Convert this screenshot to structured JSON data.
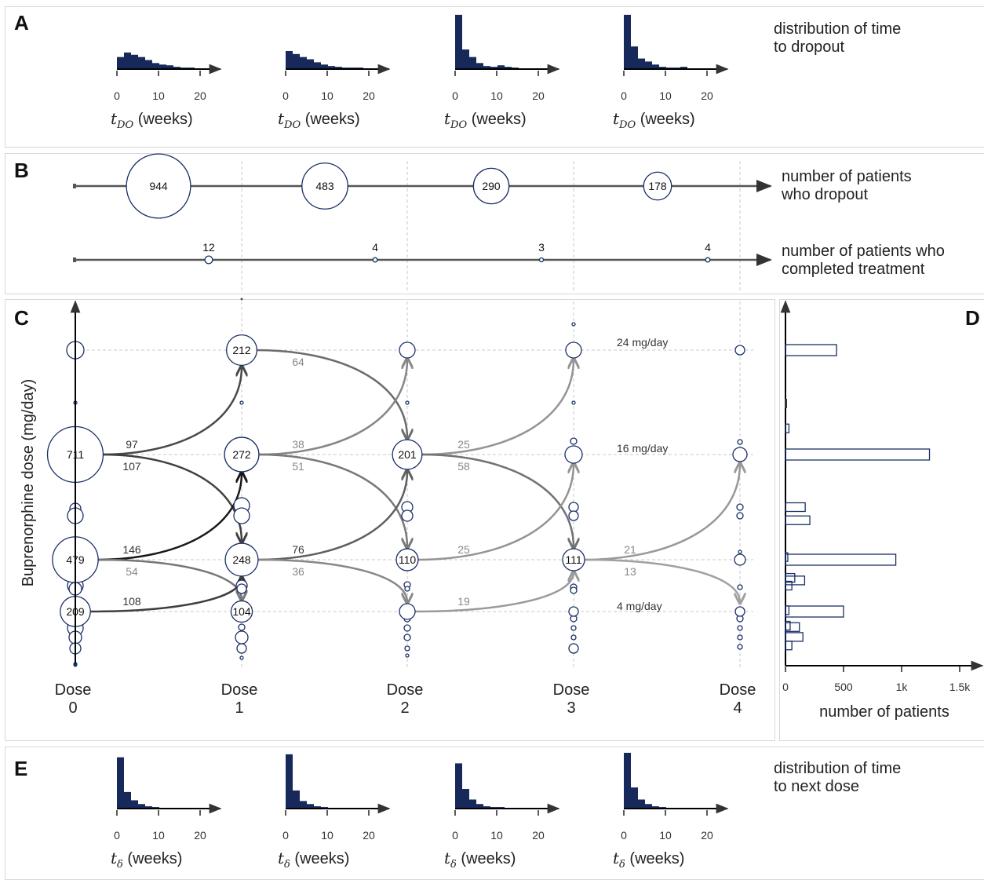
{
  "panels": {
    "a": "A",
    "b": "B",
    "c": "C",
    "d": "D",
    "e": "E"
  },
  "notes": {
    "a": "distribution of time\nto dropout",
    "b1": "number of patients\nwho dropout",
    "b2": "number of patients who\ncompleted treatment",
    "e": "distribution of time\nto next dose"
  },
  "colors": {
    "navy": "#16295a",
    "circle_stroke": "#1a2f66",
    "axis": "#333333",
    "grid": "#c8c8c8"
  },
  "chart_data": [
    {
      "id": "A",
      "type": "bar",
      "xlabel": "t_DO (weeks)",
      "xticks": [
        0,
        10,
        20
      ],
      "bin_width_weeks": 2,
      "series": [
        {
          "values": [
            16,
            22,
            19,
            16,
            12,
            8,
            6,
            5,
            3,
            2,
            2,
            1,
            1
          ]
        },
        {
          "values": [
            24,
            20,
            16,
            13,
            9,
            6,
            4,
            3,
            2,
            2,
            2,
            1,
            1
          ]
        },
        {
          "values": [
            72,
            26,
            16,
            8,
            4,
            3,
            5,
            3,
            2,
            1,
            1,
            1,
            1
          ]
        },
        {
          "values": [
            72,
            30,
            14,
            10,
            6,
            3,
            2,
            2,
            3,
            1,
            1,
            1,
            1
          ]
        }
      ]
    },
    {
      "id": "B",
      "type": "scatter",
      "rows": [
        {
          "values": [
            944,
            483,
            290,
            178
          ]
        },
        {
          "values": [
            12,
            4,
            3,
            4
          ]
        }
      ]
    },
    {
      "id": "C",
      "type": "scatter",
      "ylabel": "Buprenorphine dose (mg/day)",
      "x_categories": [
        [
          "Dose",
          "0"
        ],
        [
          "Dose",
          "1"
        ],
        [
          "Dose",
          "2"
        ],
        [
          "Dose",
          "3"
        ],
        [
          "Dose",
          "4"
        ]
      ],
      "dose_levels_mg": [
        4,
        8,
        16,
        24
      ],
      "level_labels": [
        "24 mg/day",
        "16 mg/day",
        "4 mg/day"
      ],
      "nodes": [
        {
          "dose": 0,
          "mg": 16,
          "n": 711
        },
        {
          "dose": 0,
          "mg": 8,
          "n": 479
        },
        {
          "dose": 0,
          "mg": 4,
          "n": 209
        },
        {
          "dose": 1,
          "mg": 24,
          "n": 212
        },
        {
          "dose": 1,
          "mg": 16,
          "n": 272
        },
        {
          "dose": 1,
          "mg": 8,
          "n": 248
        },
        {
          "dose": 1,
          "mg": 4,
          "n": 104
        },
        {
          "dose": 2,
          "mg": 16,
          "n": 201
        },
        {
          "dose": 2,
          "mg": 8,
          "n": 110
        },
        {
          "dose": 3,
          "mg": 8,
          "n": 111
        }
      ],
      "flows": [
        {
          "from": 0,
          "from_mg": 16,
          "to_mg": 24,
          "n": 97
        },
        {
          "from": 0,
          "from_mg": 16,
          "to_mg": 8,
          "n": 107
        },
        {
          "from": 0,
          "from_mg": 8,
          "to_mg": 16,
          "n": 146
        },
        {
          "from": 0,
          "from_mg": 8,
          "to_mg": 4,
          "n": 54
        },
        {
          "from": 0,
          "from_mg": 4,
          "to_mg": 8,
          "n": 108
        },
        {
          "from": 1,
          "from_mg": 24,
          "to_mg": 16,
          "n": 64
        },
        {
          "from": 1,
          "from_mg": 16,
          "to_mg": 24,
          "n": 38
        },
        {
          "from": 1,
          "from_mg": 16,
          "to_mg": 8,
          "n": 51
        },
        {
          "from": 1,
          "from_mg": 8,
          "to_mg": 16,
          "n": 76
        },
        {
          "from": 1,
          "from_mg": 8,
          "to_mg": 4,
          "n": 36
        },
        {
          "from": 2,
          "from_mg": 16,
          "to_mg": 24,
          "n": 25
        },
        {
          "from": 2,
          "from_mg": 16,
          "to_mg": 8,
          "n": 58
        },
        {
          "from": 2,
          "from_mg": 8,
          "to_mg": 16,
          "n": 25
        },
        {
          "from": 2,
          "from_mg": 4,
          "to_mg": 8,
          "n": 19
        },
        {
          "from": 3,
          "from_mg": 8,
          "to_mg": 16,
          "n": 21
        },
        {
          "from": 3,
          "from_mg": 8,
          "to_mg": 4,
          "n": 13
        }
      ]
    },
    {
      "id": "D",
      "type": "bar",
      "orientation": "horizontal",
      "xlabel": "number of patients",
      "xticks": [
        "0",
        "500",
        "1k",
        "1.5k"
      ],
      "xlim": [
        0,
        1650
      ],
      "bars": [
        {
          "mg": 24,
          "value": 440
        },
        {
          "mg": 18,
          "value": 30
        },
        {
          "mg": 16,
          "value": 1240
        },
        {
          "mg": 12,
          "value": 170
        },
        {
          "mg": 11,
          "value": 210
        },
        {
          "mg": 8.2,
          "value": 20
        },
        {
          "mg": 8,
          "value": 950
        },
        {
          "mg": 6.6,
          "value": 80
        },
        {
          "mg": 6.4,
          "value": 165
        },
        {
          "mg": 6,
          "value": 55
        },
        {
          "mg": 4.1,
          "value": 30
        },
        {
          "mg": 4,
          "value": 500
        },
        {
          "mg": 3,
          "value": 40
        },
        {
          "mg": 2.9,
          "value": 120
        },
        {
          "mg": 2.2,
          "value": 150
        },
        {
          "mg": 1.6,
          "value": 55
        }
      ]
    },
    {
      "id": "E",
      "type": "bar",
      "xlabel": "t_δ (weeks)",
      "xticks": [
        0,
        10,
        20
      ],
      "bin_width_weeks": 2,
      "series": [
        {
          "values": [
            68,
            22,
            11,
            6,
            3,
            2,
            1,
            1,
            1
          ]
        },
        {
          "values": [
            72,
            24,
            10,
            6,
            3,
            2,
            1,
            1,
            1
          ]
        },
        {
          "values": [
            60,
            26,
            12,
            6,
            3,
            2,
            2,
            1,
            1
          ]
        },
        {
          "values": [
            74,
            28,
            12,
            6,
            3,
            2,
            1,
            1,
            1
          ]
        }
      ]
    }
  ]
}
